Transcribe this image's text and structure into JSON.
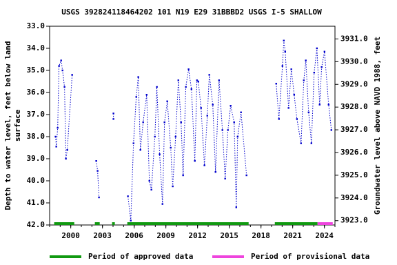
{
  "chart_data": {
    "type": "line",
    "title": "USGS 392824118464202 101  N19 E29 31BBBD2    USGS I-5 SHALLOW",
    "y_label": "Depth to water level, feet below land surface",
    "y2_label": "Groundwater level above NAVD 1988, feet",
    "xlim": [
      1998.0,
      2025.0
    ],
    "xticks": [
      2000,
      2003,
      2006,
      2009,
      2012,
      2015,
      2018,
      2021,
      2024
    ],
    "ylim": [
      42.0,
      33.0
    ],
    "yticks": [
      {
        "value": 33,
        "label": "33.0"
      },
      {
        "value": 34,
        "label": "34.0"
      },
      {
        "value": 35,
        "label": "35.0"
      },
      {
        "value": 36,
        "label": "36.0"
      },
      {
        "value": 37,
        "label": "37.0"
      },
      {
        "value": 38,
        "label": "38.0"
      },
      {
        "value": 39,
        "label": "39.0"
      },
      {
        "value": 40,
        "label": "40.0"
      },
      {
        "value": 41,
        "label": "41.0"
      },
      {
        "value": 42,
        "label": "42.0"
      }
    ],
    "y2lim": [
      3922.81,
      3931.56
    ],
    "y2ticks": [
      {
        "value": 3923,
        "label": "3923.0"
      },
      {
        "value": 3924,
        "label": "3924.0"
      },
      {
        "value": 3925,
        "label": "3925.0"
      },
      {
        "value": 3926,
        "label": "3926.0"
      },
      {
        "value": 3927,
        "label": "3927.0"
      },
      {
        "value": 3928,
        "label": "3928.0"
      },
      {
        "value": 3929,
        "label": "3929.0"
      },
      {
        "value": 3930,
        "label": "3930.0"
      },
      {
        "value": 3931,
        "label": "3931.0"
      }
    ],
    "series": [
      {
        "name": "Depth to water level",
        "color": "#0000cc",
        "x": [
          1998.56,
          1998.63,
          1998.76,
          1998.89,
          1999.09,
          1999.22,
          1999.41,
          1999.54,
          1999.67,
          2000.13,
          2001.3,
          2002.41,
          2002.54,
          2002.67,
          2003.4,
          2004.04,
          2004.04,
          2004.7,
          2005.41,
          2005.68,
          2005.94,
          2006.2,
          2006.39,
          2006.59,
          2006.85,
          2007.18,
          2007.44,
          2007.63,
          2007.96,
          2008.15,
          2008.41,
          2008.68,
          2008.87,
          2009.13,
          2009.46,
          2009.65,
          2009.92,
          2010.18,
          2010.44,
          2010.63,
          2010.89,
          2011.15,
          2011.42,
          2011.74,
          2011.94,
          2012.07,
          2012.33,
          2012.65,
          2012.92,
          2013.11,
          2013.44,
          2013.7,
          2014.03,
          2014.35,
          2014.61,
          2014.87,
          2015.13,
          2015.46,
          2015.66,
          2015.79,
          2016.11,
          2016.63,
          2018.0,
          2019.44,
          2019.7,
          2020.03,
          2020.16,
          2020.29,
          2020.61,
          2020.87,
          2021.14,
          2021.4,
          2021.79,
          2022.05,
          2022.24,
          2022.51,
          2022.77,
          2023.03,
          2023.29,
          2023.55,
          2023.74,
          2024.01,
          2024.4,
          2024.66
        ],
        "values": [
          38.0,
          38.45,
          37.6,
          34.8,
          34.55,
          35.0,
          35.75,
          39.0,
          38.6,
          35.2,
          null,
          39.1,
          39.55,
          40.75,
          null,
          36.95,
          37.2,
          null,
          40.7,
          41.8,
          38.3,
          36.2,
          35.3,
          38.6,
          37.35,
          36.1,
          40.0,
          40.4,
          38.0,
          35.75,
          38.8,
          41.05,
          37.35,
          36.4,
          38.5,
          40.25,
          38.0,
          35.45,
          37.35,
          39.75,
          35.75,
          34.95,
          35.85,
          39.1,
          35.45,
          35.5,
          36.7,
          39.3,
          37.05,
          35.2,
          36.55,
          39.6,
          35.45,
          37.7,
          39.9,
          37.7,
          36.6,
          37.35,
          41.2,
          38.0,
          36.9,
          39.75,
          null,
          35.6,
          37.2,
          34.8,
          33.65,
          34.15,
          36.7,
          34.95,
          36.1,
          37.2,
          38.3,
          35.45,
          34.55,
          36.9,
          38.3,
          35.1,
          34.0,
          36.55,
          34.85,
          34.15,
          36.55,
          37.7
        ]
      }
    ],
    "periods": [
      {
        "name": "Period of approved data",
        "color": "#119911",
        "ranges": [
          [
            1998.43,
            2000.33
          ],
          [
            2002.28,
            2002.74
          ],
          [
            2003.91,
            2004.17
          ],
          [
            2005.35,
            2016.83
          ],
          [
            2019.31,
            2023.35
          ]
        ]
      },
      {
        "name": "Period of provisional data",
        "color": "#ee44dd",
        "ranges": [
          [
            2023.35,
            2024.79
          ]
        ]
      }
    ]
  }
}
